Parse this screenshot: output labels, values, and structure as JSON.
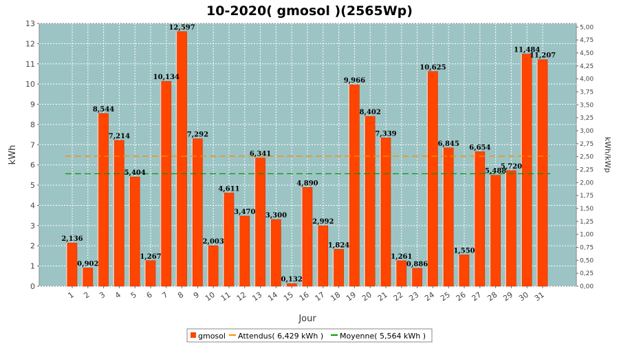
{
  "chart_data": {
    "type": "bar",
    "title": "10-2020( gmosol )(2565Wp)",
    "xlabel": "Jour",
    "ylabel": "kWh",
    "ylabel_right": "kWh/kWp",
    "ylim": [
      0,
      13
    ],
    "ylim_right": [
      0,
      5.07
    ],
    "y_ticks": [
      "0",
      "1",
      "2",
      "3",
      "4",
      "5",
      "6",
      "7",
      "8",
      "9",
      "10",
      "11",
      "12",
      "13"
    ],
    "y_ticks_right": [
      "0,00",
      "0,25",
      "0,50",
      "0,75",
      "1,00",
      "1,25",
      "1,50",
      "1,75",
      "2,00",
      "2,25",
      "2,50",
      "2,75",
      "3,00",
      "3,25",
      "3,50",
      "3,75",
      "4,00",
      "4,25",
      "4,50",
      "4,75",
      "5,00"
    ],
    "categories": [
      "1",
      "2",
      "3",
      "4",
      "5",
      "6",
      "7",
      "8",
      "9",
      "10",
      "11",
      "12",
      "13",
      "14",
      "15",
      "16",
      "17",
      "18",
      "19",
      "20",
      "21",
      "22",
      "23",
      "24",
      "25",
      "26",
      "27",
      "28",
      "29",
      "30",
      "31"
    ],
    "values": [
      2.136,
      0.902,
      8.544,
      7.214,
      5.404,
      1.267,
      10.134,
      12.597,
      7.292,
      2.003,
      4.611,
      3.47,
      6.341,
      3.3,
      0.132,
      4.89,
      2.992,
      1.824,
      9.966,
      8.402,
      7.339,
      1.261,
      0.886,
      10.625,
      6.845,
      1.55,
      6.654,
      5.488,
      5.72,
      11.484,
      11.207
    ],
    "value_labels": [
      "2,136",
      "0,902",
      "8,544",
      "7,214",
      "5,404",
      "1,267",
      "10,134",
      "12,597",
      "7,292",
      "2,003",
      "4,611",
      "3,470",
      "6,341",
      "3,300",
      "0,132",
      "4,890",
      "2,992",
      "1,824",
      "9,966",
      "8,402",
      "7,339",
      "1,261",
      "0,886",
      "10,625",
      "6,845",
      "1,550",
      "6,654",
      "5,488",
      "5,720",
      "11,484",
      "11,207"
    ],
    "series_name": "gmosol",
    "reference_lines": [
      {
        "name": "Attendus",
        "value": 6.429,
        "legend": "Attendus( 6,429 kWh )",
        "color": "#ff8c00"
      },
      {
        "name": "Moyenne",
        "value": 5.564,
        "legend": "Moyenne( 5,564 kWh )",
        "color": "#009900"
      }
    ],
    "grid": true,
    "legend_position": "bottom-center",
    "colors": {
      "bar": "#ff4500",
      "bar_edge": "#cc3300",
      "plot_background": "#9dc4c4",
      "grid": "#ffffff"
    }
  }
}
